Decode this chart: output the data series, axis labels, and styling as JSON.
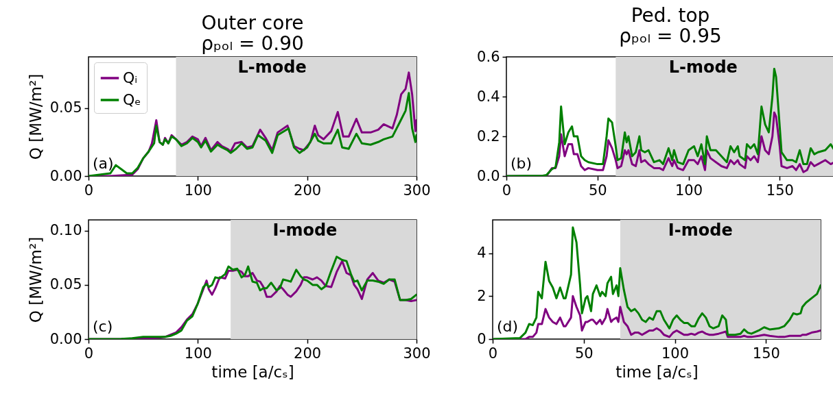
{
  "chart_data": [
    {
      "type": "line",
      "title": "Outer core",
      "subtitle": "ρₚₒₗ = 0.90",
      "ylabel": "Q  [MW/m²]",
      "legend": "top left",
      "annotations": [
        "(a)"
      ],
      "xlim": [
        0,
        300
      ],
      "xticks": [
        0,
        100,
        200,
        300
      ],
      "ylim": [
        0,
        0.0875
      ],
      "yticks": [
        {
          "value": 0,
          "label": "0.00"
        },
        {
          "value": 0.05,
          "label": "0.05"
        }
      ],
      "bands": [
        {
          "axis": "x",
          "from": 80,
          "to": 300,
          "label": "L-mode",
          "color": "#d9d9d9"
        }
      ],
      "series": [
        {
          "name": "Qᵢ",
          "color": "#800080",
          "x": [
            0,
            20,
            30,
            40,
            45,
            50,
            55,
            58,
            62,
            65,
            68,
            70,
            73,
            76,
            80,
            85,
            90,
            95,
            100,
            103,
            107,
            112,
            118,
            122,
            127,
            130,
            134,
            140,
            145,
            150,
            157,
            162,
            168,
            173,
            182,
            188,
            193,
            197,
            203,
            207,
            210,
            215,
            222,
            228,
            233,
            238,
            245,
            250,
            258,
            265,
            270,
            278,
            282,
            286,
            290,
            293,
            296,
            299,
            300
          ],
          "values": [
            0,
            0,
            0.0005,
            0.001,
            0.005,
            0.013,
            0.018,
            0.024,
            0.041,
            0.025,
            0.023,
            0.028,
            0.024,
            0.03,
            0.027,
            0.023,
            0.025,
            0.029,
            0.027,
            0.022,
            0.028,
            0.019,
            0.025,
            0.022,
            0.02,
            0.018,
            0.024,
            0.025,
            0.021,
            0.022,
            0.034,
            0.028,
            0.019,
            0.032,
            0.037,
            0.022,
            0.02,
            0.019,
            0.025,
            0.037,
            0.03,
            0.027,
            0.033,
            0.047,
            0.029,
            0.029,
            0.042,
            0.032,
            0.032,
            0.034,
            0.038,
            0.035,
            0.045,
            0.06,
            0.064,
            0.076,
            0.06,
            0.033,
            0.041
          ]
        },
        {
          "name": "Qₑ",
          "color": "#008000",
          "x": [
            0,
            10,
            20,
            25,
            30,
            35,
            40,
            45,
            50,
            55,
            60,
            62,
            65,
            68,
            70,
            73,
            76,
            80,
            85,
            90,
            95,
            100,
            103,
            107,
            112,
            118,
            122,
            127,
            130,
            135,
            140,
            145,
            150,
            155,
            162,
            168,
            173,
            183,
            188,
            193,
            200,
            207,
            210,
            215,
            222,
            228,
            232,
            238,
            245,
            250,
            258,
            265,
            270,
            278,
            285,
            290,
            293,
            296,
            299,
            300
          ],
          "values": [
            0,
            0.001,
            0.002,
            0.008,
            0.005,
            0.002,
            0.002,
            0.006,
            0.013,
            0.018,
            0.024,
            0.037,
            0.025,
            0.023,
            0.027,
            0.024,
            0.029,
            0.027,
            0.022,
            0.024,
            0.028,
            0.025,
            0.021,
            0.026,
            0.018,
            0.023,
            0.021,
            0.019,
            0.017,
            0.02,
            0.024,
            0.02,
            0.021,
            0.03,
            0.026,
            0.017,
            0.03,
            0.035,
            0.021,
            0.017,
            0.021,
            0.031,
            0.026,
            0.024,
            0.024,
            0.034,
            0.021,
            0.02,
            0.031,
            0.024,
            0.023,
            0.025,
            0.027,
            0.029,
            0.04,
            0.048,
            0.061,
            0.035,
            0.025,
            0.03
          ]
        }
      ]
    },
    {
      "type": "line",
      "title": "Ped. top",
      "subtitle": "ρₚₒₗ = 0.95",
      "annotations": [
        "(b)"
      ],
      "xlim": [
        0,
        180
      ],
      "xticks": [
        0,
        50,
        100,
        150
      ],
      "ylim": [
        0,
        0.6
      ],
      "yticks": [
        {
          "value": 0,
          "label": "0.0"
        },
        {
          "value": 0.2,
          "label": "0.2"
        },
        {
          "value": 0.4,
          "label": "0.4"
        },
        {
          "value": 0.6,
          "label": "0.6"
        }
      ],
      "bands": [
        {
          "axis": "x",
          "from": 60,
          "to": 180,
          "label": "L-mode",
          "color": "#d9d9d9"
        }
      ],
      "x": [
        0,
        20,
        22,
        25,
        27,
        29,
        30,
        32,
        34,
        36,
        37,
        39,
        41,
        43,
        45,
        50,
        53,
        55,
        56,
        58,
        60,
        61,
        63,
        65,
        66,
        67,
        69,
        71,
        73,
        74,
        76,
        78,
        81,
        84,
        86,
        89,
        91,
        92,
        94,
        97,
        100,
        103,
        105,
        107,
        109,
        110,
        112,
        115,
        118,
        121,
        123,
        125,
        127,
        128,
        131,
        132,
        134,
        136,
        138,
        140,
        142,
        144,
        146,
        147,
        148,
        150,
        151,
        154,
        157,
        159,
        161,
        163,
        165,
        167,
        169,
        171,
        175,
        178,
        180
      ],
      "series": [
        {
          "color": "#800080",
          "values": [
            0,
            0,
            0,
            0.04,
            0.04,
            0.1,
            0.21,
            0.1,
            0.16,
            0.16,
            0.11,
            0.11,
            0.05,
            0.03,
            0.04,
            0.03,
            0.03,
            0.1,
            0.18,
            0.14,
            0.08,
            0.04,
            0.05,
            0.13,
            0.11,
            0.13,
            0.06,
            0.05,
            0.13,
            0.07,
            0.08,
            0.06,
            0.04,
            0.04,
            0.03,
            0.09,
            0.05,
            0.08,
            0.04,
            0.03,
            0.08,
            0.08,
            0.06,
            0.1,
            0.03,
            0.13,
            0.09,
            0.07,
            0.05,
            0.04,
            0.08,
            0.06,
            0.08,
            0.06,
            0.04,
            0.1,
            0.08,
            0.1,
            0.07,
            0.2,
            0.13,
            0.11,
            0.2,
            0.32,
            0.3,
            0.15,
            0.05,
            0.04,
            0.05,
            0.03,
            0.06,
            0.02,
            0.03,
            0.07,
            0.05,
            0.06,
            0.08,
            0.06,
            0.07
          ]
        },
        {
          "color": "#008000",
          "values": [
            0,
            0.002,
            0.005,
            0.035,
            0.045,
            0.17,
            0.35,
            0.16,
            0.22,
            0.25,
            0.2,
            0.2,
            0.1,
            0.08,
            0.07,
            0.06,
            0.06,
            0.2,
            0.29,
            0.27,
            0.15,
            0.08,
            0.09,
            0.22,
            0.17,
            0.2,
            0.1,
            0.12,
            0.2,
            0.13,
            0.12,
            0.13,
            0.07,
            0.08,
            0.06,
            0.14,
            0.08,
            0.13,
            0.07,
            0.06,
            0.13,
            0.15,
            0.1,
            0.16,
            0.06,
            0.2,
            0.13,
            0.13,
            0.1,
            0.07,
            0.15,
            0.12,
            0.15,
            0.1,
            0.08,
            0.16,
            0.14,
            0.16,
            0.11,
            0.35,
            0.26,
            0.22,
            0.4,
            0.54,
            0.5,
            0.25,
            0.12,
            0.08,
            0.08,
            0.07,
            0.13,
            0.06,
            0.06,
            0.14,
            0.11,
            0.12,
            0.13,
            0.16,
            0.13
          ]
        }
      ]
    },
    {
      "type": "line",
      "ylabel": "Q  [MW/m²]",
      "xlabel": "time  [a/cₛ]",
      "annotations": [
        "(c)"
      ],
      "xlim": [
        0,
        300
      ],
      "xticks": [
        0,
        100,
        200,
        300
      ],
      "ylim": [
        0,
        0.11
      ],
      "yticks": [
        {
          "value": 0,
          "label": "0.00"
        },
        {
          "value": 0.05,
          "label": "0.05"
        },
        {
          "value": 0.1,
          "label": "0.10"
        }
      ],
      "bands": [
        {
          "axis": "x",
          "from": 130,
          "to": 300,
          "label": "I-mode",
          "color": "#d9d9d9"
        }
      ],
      "x": [
        0,
        30,
        40,
        50,
        60,
        70,
        75,
        80,
        85,
        90,
        95,
        100,
        105,
        108,
        110,
        113,
        116,
        120,
        125,
        128,
        132,
        136,
        140,
        143,
        146,
        150,
        154,
        157,
        160,
        163,
        167,
        172,
        175,
        178,
        182,
        185,
        190,
        194,
        197,
        200,
        205,
        209,
        213,
        217,
        222,
        227,
        232,
        236,
        240,
        243,
        246,
        250,
        255,
        260,
        265,
        270,
        275,
        280,
        285,
        290,
        295,
        300
      ],
      "series": [
        {
          "color": "#800080",
          "values": [
            0,
            0,
            0.0005,
            0.001,
            0.001,
            0.002,
            0.004,
            0.006,
            0.011,
            0.018,
            0.023,
            0.033,
            0.046,
            0.054,
            0.046,
            0.041,
            0.047,
            0.057,
            0.056,
            0.063,
            0.063,
            0.064,
            0.062,
            0.058,
            0.058,
            0.061,
            0.054,
            0.053,
            0.048,
            0.039,
            0.039,
            0.044,
            0.049,
            0.046,
            0.041,
            0.039,
            0.044,
            0.05,
            0.057,
            0.057,
            0.055,
            0.057,
            0.054,
            0.049,
            0.048,
            0.062,
            0.072,
            0.061,
            0.059,
            0.05,
            0.046,
            0.037,
            0.055,
            0.061,
            0.054,
            0.052,
            0.055,
            0.053,
            0.036,
            0.036,
            0.035,
            0.036
          ]
        },
        {
          "color": "#008000",
          "values": [
            0,
            0.0002,
            0.0008,
            0.002,
            0.002,
            0.002,
            0.003,
            0.005,
            0.008,
            0.017,
            0.021,
            0.033,
            0.048,
            0.051,
            0.048,
            0.05,
            0.057,
            0.056,
            0.06,
            0.067,
            0.064,
            0.065,
            0.057,
            0.059,
            0.067,
            0.053,
            0.052,
            0.045,
            0.047,
            0.047,
            0.052,
            0.045,
            0.047,
            0.055,
            0.054,
            0.053,
            0.064,
            0.058,
            0.055,
            0.054,
            0.05,
            0.05,
            0.046,
            0.049,
            0.063,
            0.076,
            0.073,
            0.072,
            0.06,
            0.053,
            0.054,
            0.045,
            0.054,
            0.054,
            0.053,
            0.051,
            0.055,
            0.055,
            0.036,
            0.036,
            0.037,
            0.041
          ]
        }
      ]
    },
    {
      "type": "line",
      "xlabel": "time  [a/cₛ]",
      "annotations": [
        "(d)"
      ],
      "xlim": [
        0,
        180
      ],
      "xticks": [
        0,
        50,
        100,
        150
      ],
      "ylim": [
        0,
        5.55
      ],
      "yticks": [
        0,
        2,
        4
      ],
      "bands": [
        {
          "axis": "x",
          "from": 70,
          "to": 180,
          "label": "I-mode",
          "color": "#d9d9d9"
        }
      ],
      "x": [
        0,
        15,
        18,
        20,
        22,
        24,
        25,
        27,
        29,
        31,
        33,
        35,
        37,
        39,
        40,
        43,
        44,
        46,
        48,
        49,
        51,
        52,
        54,
        55,
        57,
        59,
        60,
        62,
        63,
        65,
        66,
        68,
        69,
        70,
        72,
        74,
        76,
        78,
        80,
        82,
        84,
        86,
        88,
        90,
        92,
        94,
        97,
        99,
        101,
        103,
        105,
        107,
        109,
        111,
        113,
        115,
        117,
        119,
        121,
        124,
        126,
        128,
        129,
        133,
        136,
        138,
        140,
        142,
        146,
        149,
        152,
        157,
        160,
        163,
        165,
        167,
        169,
        170,
        172,
        175,
        178,
        180
      ],
      "series": [
        {
          "color": "#800080",
          "values": [
            0,
            0,
            0,
            0.1,
            0.1,
            0.3,
            0.7,
            0.7,
            1.4,
            1.0,
            0.8,
            0.7,
            1.0,
            0.6,
            0.6,
            1.0,
            2.0,
            1.5,
            1.1,
            0.4,
            0.8,
            0.8,
            0.9,
            0.9,
            0.7,
            0.9,
            0.7,
            1.0,
            1.4,
            0.8,
            0.9,
            1.0,
            0.8,
            1.5,
            0.8,
            0.6,
            0.2,
            0.3,
            0.3,
            0.2,
            0.3,
            0.4,
            0.4,
            0.5,
            0.4,
            0.2,
            0.1,
            0.3,
            0.4,
            0.3,
            0.2,
            0.2,
            0.25,
            0.2,
            0.3,
            0.35,
            0.25,
            0.2,
            0.2,
            0.25,
            0.3,
            0.35,
            0.1,
            0.1,
            0.1,
            0.15,
            0.1,
            0.1,
            0.15,
            0.2,
            0.15,
            0.1,
            0.1,
            0.15,
            0.15,
            0.15,
            0.15,
            0.2,
            0.2,
            0.3,
            0.35,
            0.4
          ]
        },
        {
          "color": "#008000",
          "values": [
            0,
            0.05,
            0.3,
            0.7,
            0.65,
            1.0,
            2.2,
            1.9,
            3.6,
            2.7,
            2.4,
            1.9,
            2.4,
            1.9,
            1.9,
            3.0,
            5.2,
            4.5,
            2.5,
            1.2,
            1.9,
            2.0,
            1.3,
            2.1,
            2.5,
            2.0,
            2.2,
            2.0,
            2.6,
            2.9,
            2.1,
            2.5,
            2.0,
            3.3,
            2.3,
            1.5,
            1.3,
            1.4,
            1.2,
            0.9,
            0.8,
            1.0,
            0.9,
            1.3,
            1.3,
            0.9,
            0.5,
            0.9,
            1.1,
            0.9,
            0.75,
            0.75,
            0.6,
            0.6,
            0.95,
            1.2,
            1.0,
            0.6,
            0.5,
            0.6,
            1.1,
            0.9,
            0.2,
            0.2,
            0.25,
            0.45,
            0.3,
            0.25,
            0.4,
            0.55,
            0.45,
            0.5,
            0.6,
            0.9,
            1.2,
            1.15,
            1.2,
            1.5,
            1.7,
            1.9,
            2.1,
            2.5
          ]
        }
      ]
    }
  ]
}
